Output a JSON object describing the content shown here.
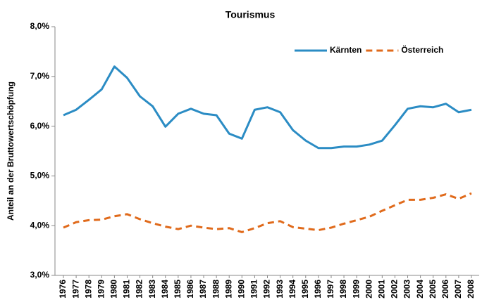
{
  "chart_data": {
    "type": "line",
    "title": "Tourismus",
    "ylabel": "Anteil an der Bruttowertschöpfung",
    "categories": [
      "1976",
      "1977",
      "1978",
      "1979",
      "1980",
      "1981",
      "1982",
      "1983",
      "1984",
      "1985",
      "1986",
      "1987",
      "1988",
      "1989",
      "1990",
      "1991",
      "1992",
      "1993",
      "1994",
      "1995",
      "1996",
      "1997",
      "1998",
      "1999",
      "2000",
      "2001",
      "2002",
      "2003",
      "2004",
      "2005",
      "2006",
      "2007",
      "2008"
    ],
    "series": [
      {
        "name": "Kärnten",
        "color": "#2b8cc4",
        "dash": false,
        "values": [
          6.22,
          6.33,
          6.53,
          6.74,
          7.2,
          6.97,
          6.6,
          6.4,
          5.99,
          6.25,
          6.35,
          6.25,
          6.22,
          5.85,
          5.75,
          6.33,
          6.38,
          6.28,
          5.92,
          5.71,
          5.56,
          5.56,
          5.59,
          5.59,
          5.63,
          5.71,
          6.02,
          6.35,
          6.4,
          6.38,
          6.45,
          6.28,
          6.33
        ]
      },
      {
        "name": "Österreich",
        "color": "#e06a1b",
        "dash": true,
        "values": [
          3.96,
          4.07,
          4.11,
          4.12,
          4.19,
          4.23,
          4.13,
          4.05,
          3.98,
          3.93,
          4.0,
          3.96,
          3.93,
          3.95,
          3.87,
          3.95,
          4.05,
          4.09,
          3.97,
          3.94,
          3.91,
          3.96,
          4.04,
          4.11,
          4.18,
          4.3,
          4.41,
          4.52,
          4.52,
          4.56,
          4.63,
          4.54,
          4.65
        ]
      }
    ],
    "ylim": [
      3,
      8
    ],
    "yticks": [
      {
        "value": 3,
        "label": "3,0%"
      },
      {
        "value": 4,
        "label": "4,0%"
      },
      {
        "value": 5,
        "label": "5,0%"
      },
      {
        "value": 6,
        "label": "6,0%"
      },
      {
        "value": 7,
        "label": "7,0%"
      },
      {
        "value": 8,
        "label": "8,0%"
      }
    ],
    "grid": false,
    "legend": "upper right"
  }
}
